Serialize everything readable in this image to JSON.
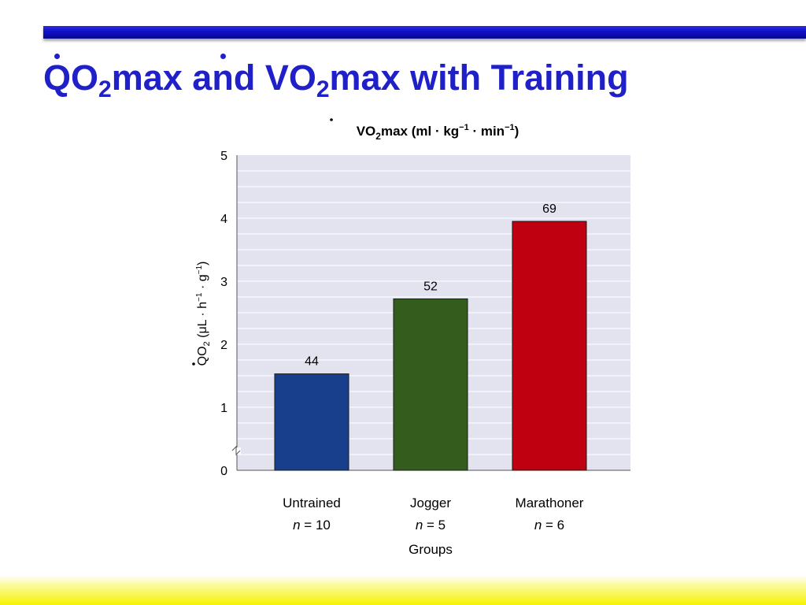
{
  "slide": {
    "title_q": "Q",
    "title_o1": "O",
    "title_sub1": "2",
    "title_mid": "max a",
    "title_n": "n",
    "title_d": "d V",
    "title_o2": "O",
    "title_sub2": "2",
    "title_end": "max with Training"
  },
  "colors": {
    "title": "#2020c8",
    "top_bar": "#1010c8",
    "bottom_band": "#f6f200",
    "plot_background": "#e3e3f0"
  },
  "chart_data": {
    "type": "bar",
    "title_parts": [
      "V",
      "O",
      "2",
      "max (ml · kg",
      "−1",
      " · min",
      "−1",
      ")"
    ],
    "ylabel_parts": [
      "Q",
      "O",
      "2",
      " (μL · h",
      "−1",
      " · g",
      "−1",
      ")"
    ],
    "xlabel": "Groups",
    "categories": [
      "Untrained",
      "Jogger",
      "Marathoner"
    ],
    "n_labels": [
      {
        "var": "n",
        "rest": " = 10"
      },
      {
        "var": "n",
        "rest": " = 5"
      },
      {
        "var": "n",
        "rest": " = 6"
      }
    ],
    "values": [
      1.53,
      2.72,
      3.95
    ],
    "data_labels": [
      "44",
      "52",
      "69"
    ],
    "colors": [
      "#183f8c",
      "#345c1c",
      "#be0011"
    ],
    "ylim": [
      0,
      5
    ],
    "yticks": [
      "0",
      "1",
      "2",
      "3",
      "4",
      "5"
    ],
    "axis_break": true,
    "grid": true
  }
}
